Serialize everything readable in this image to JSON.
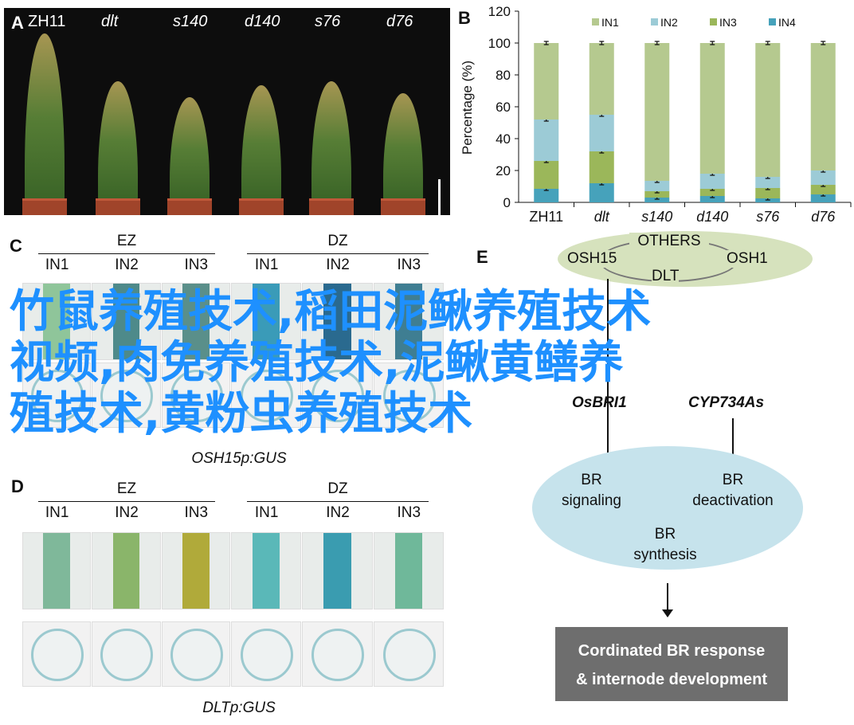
{
  "panels": {
    "a": "A",
    "b": "B",
    "c": "C",
    "d": "D",
    "e": "E"
  },
  "panelA": {
    "genotypes": [
      "ZH11",
      "dlt",
      "s140",
      "d140",
      "s76",
      "d76"
    ]
  },
  "chart_data": {
    "type": "bar",
    "stacked": true,
    "categories": [
      "ZH11",
      "dlt",
      "s140",
      "d140",
      "s76",
      "d76"
    ],
    "ylabel": "Percentage (%)",
    "ylim": [
      0,
      120
    ],
    "yticks": [
      0,
      20,
      40,
      60,
      80,
      100,
      120
    ],
    "legend": "top",
    "series": [
      {
        "name": "IN4",
        "color": "#46a2bb",
        "values": [
          8.5,
          12,
          3,
          4,
          2.5,
          5
        ]
      },
      {
        "name": "IN3",
        "color": "#9bb75a",
        "values": [
          17.5,
          20,
          4,
          4.5,
          6.5,
          6
        ]
      },
      {
        "name": "IN2",
        "color": "#9ccbd6",
        "values": [
          26,
          23,
          6.5,
          9.5,
          7,
          9
        ]
      },
      {
        "name": "IN1",
        "color": "#b5c98f",
        "values": [
          48,
          45,
          86.5,
          82,
          84,
          80
        ]
      }
    ],
    "legend_order": [
      "IN1",
      "IN2",
      "IN3",
      "IN4"
    ]
  },
  "panelC": {
    "groups": [
      "EZ",
      "DZ"
    ],
    "internodes": [
      "IN1",
      "IN2",
      "IN3"
    ],
    "caption": "OSH15p:GUS"
  },
  "panelD": {
    "groups": [
      "EZ",
      "DZ"
    ],
    "internodes": [
      "IN1",
      "IN2",
      "IN3"
    ],
    "caption": "DLTp:GUS"
  },
  "panelE": {
    "others": "OTHERS",
    "osh15": "OSH15",
    "osh1": "OSH1",
    "dlt": "DLT",
    "osbri1": "OsBRI1",
    "cyp": "CYP734As",
    "signaling": "BR\nsignaling",
    "deactivation": "BR\ndeactivation",
    "synthesis": "BR\nsynthesis",
    "response": "Cordinated BR response\n& internode development"
  },
  "overlay": {
    "line1": "竹鼠养殖技术,稻田泥鳅养殖技术",
    "line2": "视频,肉免养殖技术,泥鳅黄鳝养",
    "line3": "殖技术,黄粉虫养殖技术"
  }
}
